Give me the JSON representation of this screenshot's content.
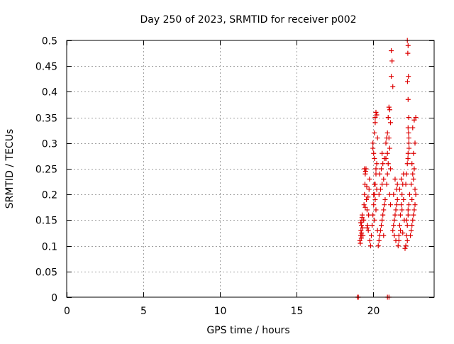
{
  "chart_data": {
    "type": "scatter",
    "title": "Day 250 of 2023, SRMTID for receiver p002",
    "xlabel": "GPS time / hours",
    "ylabel": "SRMTID / TECUs",
    "xlim": [
      0,
      24
    ],
    "ylim": [
      0,
      0.5
    ],
    "xticks": [
      0,
      5,
      10,
      15,
      20
    ],
    "xtick_labels": [
      "0",
      "5",
      "10",
      "15",
      "20"
    ],
    "yticks": [
      0,
      0.05,
      0.1,
      0.15,
      0.2,
      0.25,
      0.3,
      0.35,
      0.4,
      0.45,
      0.5
    ],
    "ytick_labels": [
      "0",
      "0.05",
      "0.1",
      "0.15",
      "0.2",
      "0.25",
      "0.3",
      "0.35",
      "0.4",
      "0.45",
      "0.5"
    ],
    "grid": true,
    "marker": "+",
    "color": "#dd0000",
    "series": [
      {
        "name": "SRMTID",
        "x": [
          19.0,
          19.05,
          20.95,
          21.05,
          19.15,
          19.2,
          19.22,
          19.25,
          19.28,
          19.3,
          19.18,
          19.26,
          19.33,
          19.21,
          19.29,
          19.24,
          19.35,
          19.4,
          19.42,
          19.45,
          19.48,
          19.5,
          19.55,
          19.58,
          19.62,
          19.65,
          19.7,
          19.72,
          19.75,
          19.78,
          19.8,
          19.45,
          19.52,
          19.6,
          19.68,
          19.5,
          19.62,
          19.85,
          19.9,
          19.95,
          20.0,
          20.05,
          20.1,
          20.15,
          20.2,
          20.25,
          20.3,
          20.0,
          20.05,
          20.1,
          20.15,
          20.2,
          20.25,
          20.3,
          20.0,
          20.1,
          20.2,
          20.05,
          20.1,
          20.15,
          20.1,
          20.2,
          20.25,
          20.15,
          20.35,
          20.4,
          20.45,
          20.5,
          20.55,
          20.6,
          20.65,
          20.7,
          20.75,
          20.8,
          20.4,
          20.5,
          20.6,
          20.7,
          20.45,
          20.55,
          20.65,
          20.75,
          20.6,
          20.7,
          20.85,
          20.9,
          20.95,
          21.0,
          21.05,
          21.1,
          21.15,
          20.9,
          20.95,
          21.0,
          20.85,
          21.1,
          21.05,
          20.95,
          21.15,
          21.2,
          21.25,
          21.2,
          21.3,
          21.1,
          21.15,
          21.3,
          21.35,
          21.4,
          21.45,
          21.5,
          21.55,
          21.6,
          21.4,
          21.5,
          21.6,
          21.35,
          21.45,
          21.55,
          21.65,
          21.7,
          21.75,
          21.8,
          21.85,
          21.9,
          21.95,
          22.0,
          22.05,
          21.7,
          21.8,
          21.9,
          22.0,
          21.75,
          21.85,
          21.95,
          22.1,
          22.15,
          22.2,
          22.25,
          22.3,
          22.35,
          22.4,
          22.15,
          22.2,
          22.25,
          22.3,
          22.35,
          22.2,
          22.3,
          22.25,
          22.25,
          22.3,
          22.28,
          22.32,
          22.26,
          22.3,
          22.34,
          22.3,
          22.33,
          22.36,
          22.29,
          22.35,
          22.45,
          22.5,
          22.55,
          22.6,
          22.65,
          22.7,
          22.75,
          22.8,
          22.5,
          22.6,
          22.7,
          22.55,
          22.65,
          22.75,
          22.6,
          22.7,
          22.8,
          22.65,
          22.55,
          22.75
        ],
        "y": [
          0.0,
          0.0,
          0.0,
          0.0,
          0.11,
          0.12,
          0.13,
          0.14,
          0.15,
          0.16,
          0.105,
          0.125,
          0.135,
          0.145,
          0.155,
          0.115,
          0.12,
          0.15,
          0.18,
          0.2,
          0.22,
          0.24,
          0.25,
          0.19,
          0.17,
          0.14,
          0.13,
          0.16,
          0.21,
          0.23,
          0.11,
          0.25,
          0.245,
          0.215,
          0.195,
          0.175,
          0.135,
          0.1,
          0.12,
          0.14,
          0.16,
          0.18,
          0.2,
          0.22,
          0.24,
          0.26,
          0.13,
          0.3,
          0.28,
          0.32,
          0.34,
          0.36,
          0.355,
          0.31,
          0.29,
          0.27,
          0.25,
          0.2,
          0.22,
          0.19,
          0.15,
          0.17,
          0.21,
          0.35,
          0.1,
          0.11,
          0.12,
          0.13,
          0.14,
          0.15,
          0.16,
          0.17,
          0.18,
          0.19,
          0.2,
          0.21,
          0.22,
          0.23,
          0.24,
          0.25,
          0.26,
          0.27,
          0.28,
          0.12,
          0.3,
          0.31,
          0.32,
          0.35,
          0.37,
          0.365,
          0.34,
          0.22,
          0.24,
          0.26,
          0.27,
          0.29,
          0.31,
          0.28,
          0.25,
          0.48,
          0.46,
          0.43,
          0.41,
          0.2,
          0.18,
          0.13,
          0.14,
          0.15,
          0.16,
          0.17,
          0.18,
          0.19,
          0.12,
          0.11,
          0.22,
          0.2,
          0.23,
          0.21,
          0.1,
          0.12,
          0.14,
          0.16,
          0.18,
          0.2,
          0.22,
          0.24,
          0.15,
          0.11,
          0.13,
          0.17,
          0.19,
          0.21,
          0.23,
          0.125,
          0.095,
          0.1,
          0.12,
          0.14,
          0.16,
          0.18,
          0.2,
          0.22,
          0.24,
          0.26,
          0.28,
          0.3,
          0.15,
          0.17,
          0.11,
          0.5,
          0.49,
          0.475,
          0.43,
          0.42,
          0.385,
          0.35,
          0.33,
          0.32,
          0.29,
          0.27,
          0.31,
          0.12,
          0.13,
          0.14,
          0.15,
          0.16,
          0.17,
          0.18,
          0.2,
          0.22,
          0.24,
          0.25,
          0.26,
          0.28,
          0.3,
          0.33,
          0.345,
          0.35,
          0.23,
          0.19,
          0.21
        ]
      }
    ]
  }
}
